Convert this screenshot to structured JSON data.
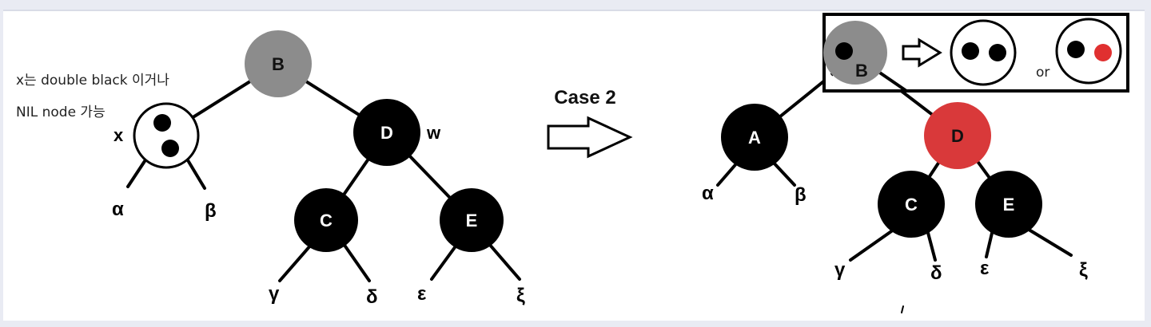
{
  "note": {
    "line1": "x는 double black 이거나",
    "line2": "NIL node 가능"
  },
  "left_tree": {
    "x_label": "x",
    "w_label": "w",
    "nodes": {
      "B": "B",
      "D": "D",
      "C": "C",
      "E": "E"
    },
    "subtrees": {
      "alpha": "α",
      "beta": "β",
      "gamma": "γ",
      "delta": "δ",
      "epsilon": "ε",
      "xi": "ξ"
    }
  },
  "transition": {
    "label": "Case 2"
  },
  "right_tree": {
    "nodes": {
      "B": "B",
      "A": "A",
      "D": "D",
      "C": "C",
      "E": "E"
    },
    "subtrees": {
      "alpha": "α",
      "beta": "β",
      "gamma": "γ",
      "delta": "δ",
      "epsilon": "ε",
      "xi": "ξ"
    }
  },
  "inset": {
    "or_label": "or"
  },
  "colors": {
    "black_node": "#000000",
    "gray_node": "#8c8c8c",
    "red_node": "#d9393a",
    "red_dot": "#e03030"
  }
}
